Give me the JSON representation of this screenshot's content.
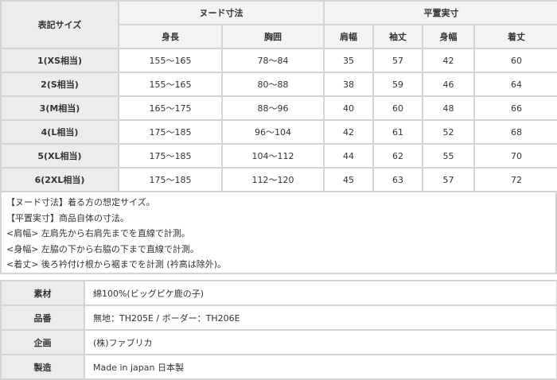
{
  "size_table": {
    "corner": "表記サイズ",
    "groups": [
      "ヌード寸法",
      "平置実寸"
    ],
    "columns": [
      "身長",
      "胸囲",
      "肩幅",
      "袖丈",
      "身幅",
      "着丈"
    ],
    "rows": [
      {
        "size": "1(XS相当)",
        "values": [
          "155～165",
          "78～84",
          "35",
          "57",
          "42",
          "60"
        ]
      },
      {
        "size": "2(S相当)",
        "values": [
          "155～165",
          "80～88",
          "38",
          "59",
          "46",
          "64"
        ]
      },
      {
        "size": "3(M相当)",
        "values": [
          "165～175",
          "88～96",
          "40",
          "60",
          "48",
          "66"
        ]
      },
      {
        "size": "4(L相当)",
        "values": [
          "175～185",
          "96～104",
          "42",
          "61",
          "52",
          "68"
        ]
      },
      {
        "size": "5(XL相当)",
        "values": [
          "175～185",
          "104～112",
          "44",
          "62",
          "55",
          "70"
        ]
      },
      {
        "size": "6(2XL相当)",
        "values": [
          "175～185",
          "112～120",
          "45",
          "63",
          "57",
          "72"
        ]
      }
    ]
  },
  "notes": [
    "【ヌード寸法】着る方の想定サイズ。",
    "【平置実寸】商品自体の寸法。",
    "<肩幅> 左肩先から右肩先までを直線で計測。",
    "<身幅> 左脇の下から右脇の下まで直線で計測。",
    "<着丈> 後ろ衿付け根から裾までを計測 (衿高は除外)。"
  ],
  "spec": [
    {
      "label": "素材",
      "value": "綿100%(ビッグピケ鹿の子)"
    },
    {
      "label": "品番",
      "value": "無地：TH205E / ボーダー：TH206E"
    },
    {
      "label": "企画",
      "value": "(株)ファブリカ"
    },
    {
      "label": "製造",
      "value": "Made in japan 日本製"
    }
  ]
}
